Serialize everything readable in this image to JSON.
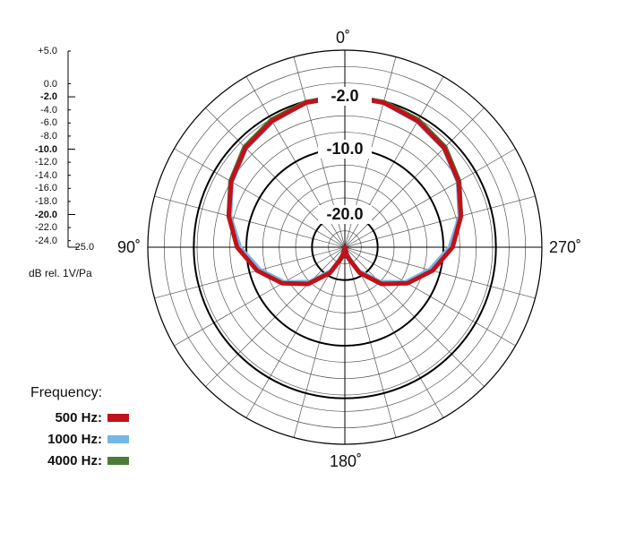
{
  "chart_data": {
    "type": "polar",
    "unit_label": "dB rel. 1V/Pa",
    "scale": {
      "labels": [
        "+5.0",
        "0.0",
        "-2.0",
        "-4.0",
        "-6.0",
        "-8.0",
        "-10.0",
        "-12.0",
        "-14.0",
        "-16.0",
        "-18.0",
        "-20.0",
        "-22.0",
        "-24.0",
        "-25.0"
      ],
      "values": [
        5,
        0,
        -2,
        -4,
        -6,
        -8,
        -10,
        -12,
        -14,
        -16,
        -18,
        -20,
        -22,
        -24,
        -25
      ],
      "major": [
        "-2.0",
        "-10.0",
        "-20.0"
      ]
    },
    "rlim": [
      -25,
      5
    ],
    "ring_labels": [
      "-2.0",
      "-10.0",
      "-20.0"
    ],
    "ring_label_values": [
      -2,
      -10,
      -20
    ],
    "angle_labels": [
      "0˚",
      "90˚",
      "180˚",
      "270˚"
    ],
    "angle_label_values": [
      0,
      90,
      180,
      270
    ],
    "grid": true,
    "legend_title": "Frequency:",
    "series": [
      {
        "name": "500 Hz:",
        "color": "#c0121a",
        "angles": [
          0,
          15,
          30,
          45,
          60,
          75,
          90,
          105,
          120,
          135,
          150,
          165,
          180,
          195,
          210,
          225,
          240,
          255,
          270,
          285,
          300,
          315,
          330,
          345
        ],
        "values": [
          -2.0,
          -2.2,
          -2.8,
          -3.6,
          -5.0,
          -6.7,
          -8.6,
          -11.2,
          -14.0,
          -17.1,
          -20.5,
          -23.5,
          -25.0,
          -23.5,
          -20.5,
          -17.1,
          -14.0,
          -11.2,
          -8.6,
          -6.7,
          -5.0,
          -3.6,
          -2.8,
          -2.2
        ]
      },
      {
        "name": "1000 Hz:",
        "color": "#74b6e4",
        "angles": [
          0,
          15,
          30,
          45,
          60,
          75,
          90,
          105,
          120,
          135,
          150,
          165,
          180,
          195,
          210,
          225,
          240,
          255,
          270,
          285,
          300,
          315,
          330,
          345
        ],
        "values": [
          -2.0,
          -2.2,
          -2.9,
          -3.7,
          -5.1,
          -6.9,
          -9.0,
          -11.6,
          -14.3,
          -17.5,
          -20.8,
          -23.5,
          -25.0,
          -23.5,
          -20.8,
          -17.5,
          -14.3,
          -11.6,
          -9.0,
          -6.9,
          -5.1,
          -3.7,
          -2.9,
          -2.2
        ]
      },
      {
        "name": "4000 Hz:",
        "color": "#4a7c35",
        "angles": [
          0,
          15,
          30,
          45,
          60,
          75,
          90,
          105,
          120,
          135,
          150,
          165,
          180,
          195,
          210,
          225,
          240,
          255,
          270,
          285,
          300,
          315,
          330,
          345
        ],
        "values": [
          -2.0,
          -2.1,
          -2.6,
          -3.4,
          -4.9,
          -6.7,
          -8.7,
          -11.3,
          -14.1,
          -17.2,
          -20.6,
          -23.5,
          -25.0,
          -23.5,
          -20.6,
          -17.2,
          -14.1,
          -11.3,
          -8.7,
          -6.7,
          -4.9,
          -3.4,
          -2.6,
          -2.1
        ]
      }
    ]
  }
}
